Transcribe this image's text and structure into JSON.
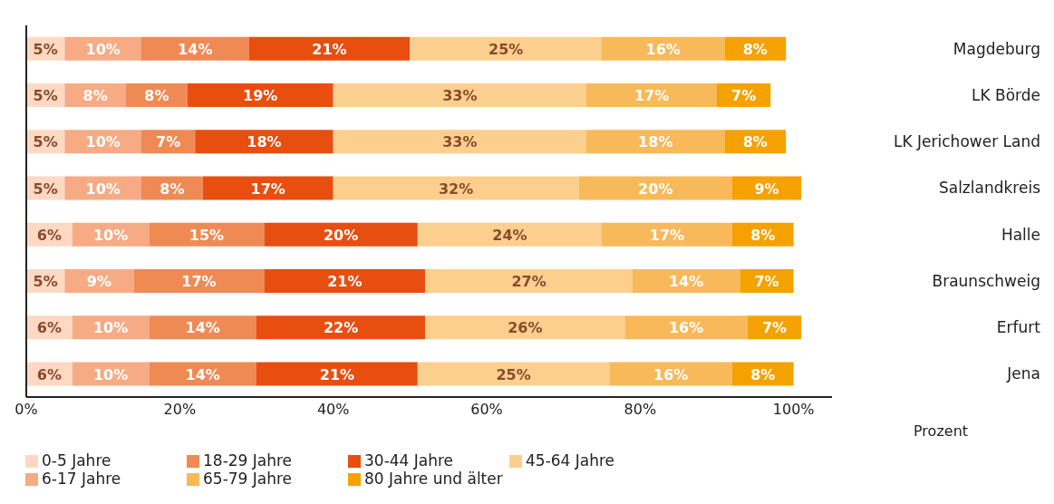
{
  "chart_data": {
    "type": "bar",
    "orientation": "horizontal",
    "stacked": true,
    "xlabel": "Prozent",
    "categories": [
      "Magdeburg",
      "LK Börde",
      "LK Jerichower Land",
      "Salzlandkreis",
      "Halle",
      "Braunschweig",
      "Erfurt",
      "Jena"
    ],
    "series": [
      {
        "name": "0-5 Jahre",
        "color": "#fdd9c4",
        "values": [
          5,
          5,
          5,
          5,
          6,
          5,
          6,
          6
        ],
        "value_labels": [
          "5%",
          "5%",
          "5%",
          "5%",
          "6%",
          "5%",
          "6%",
          "6%"
        ]
      },
      {
        "name": "6-17 Jahre",
        "color": "#f6ab85",
        "values": [
          10,
          8,
          10,
          10,
          10,
          9,
          10,
          10
        ],
        "value_labels": [
          "10%",
          "8%",
          "10%",
          "10%",
          "10%",
          "9%",
          "10%",
          "10%"
        ]
      },
      {
        "name": "18-29 Jahre",
        "color": "#f08a55",
        "values": [
          14,
          8,
          7,
          8,
          15,
          17,
          14,
          14
        ],
        "value_labels": [
          "14%",
          "8%",
          "7%",
          "8%",
          "15%",
          "17%",
          "14%",
          "14%"
        ]
      },
      {
        "name": "30-44 Jahre",
        "color": "#e84e0f",
        "values": [
          21,
          19,
          18,
          17,
          20,
          21,
          22,
          21
        ],
        "value_labels": [
          "21%",
          "19%",
          "18%",
          "17%",
          "20%",
          "21%",
          "22%",
          "21%"
        ]
      },
      {
        "name": "45-64 Jahre",
        "color": "#fccf8f",
        "values": [
          25,
          33,
          33,
          32,
          24,
          27,
          26,
          25
        ],
        "value_labels": [
          "25%",
          "33%",
          "33%",
          "32%",
          "24%",
          "27%",
          "26%",
          "25%"
        ]
      },
      {
        "name": "65-79 Jahre",
        "color": "#f8b95a",
        "values": [
          16,
          17,
          18,
          20,
          17,
          14,
          16,
          16
        ],
        "value_labels": [
          "16%",
          "17%",
          "18%",
          "20%",
          "17%",
          "14%",
          "16%",
          "16%"
        ]
      },
      {
        "name": "80 Jahre und älter",
        "color": "#f5a200",
        "values": [
          8,
          7,
          8,
          9,
          8,
          7,
          7,
          8
        ],
        "value_labels": [
          "8%",
          "7%",
          "8%",
          "9%",
          "8%",
          "7%",
          "7%",
          "8%"
        ]
      }
    ],
    "xlim": [
      0,
      105
    ],
    "xticks": [
      {
        "value": 0,
        "label": "0%"
      },
      {
        "value": 20,
        "label": "20%"
      },
      {
        "value": 40,
        "label": "40%"
      },
      {
        "value": 60,
        "label": "60%"
      },
      {
        "value": 80,
        "label": "80%"
      },
      {
        "value": 100,
        "label": "100%"
      }
    ],
    "legend": "bottom",
    "grid": false
  }
}
